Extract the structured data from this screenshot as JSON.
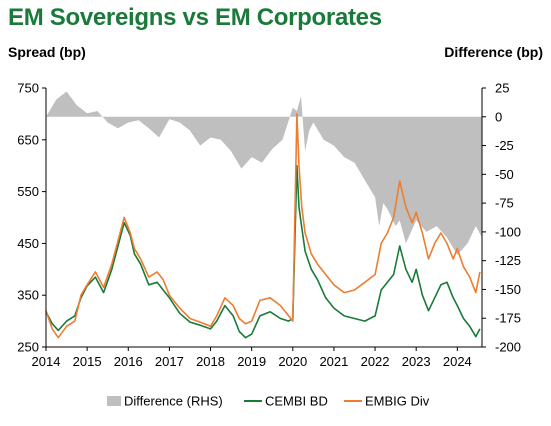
{
  "chart_data": {
    "type": "line",
    "title": "EM Sovereigns vs EM Corporates",
    "ylabel": "Spread (bp)",
    "y2label": "Difference (bp)",
    "xlim": [
      2014.0,
      2024.6
    ],
    "ylim": [
      250,
      750
    ],
    "y2lim": [
      -200,
      25
    ],
    "xticks": [
      "2014",
      "2015",
      "2016",
      "2017",
      "2018",
      "2019",
      "2020",
      "2021",
      "2022",
      "2023",
      "2024"
    ],
    "yticks": [
      250,
      350,
      450,
      550,
      650,
      750
    ],
    "y2ticks": [
      25,
      0,
      -25,
      -50,
      -75,
      -100,
      -125,
      -150,
      -175,
      -200
    ],
    "grid": false,
    "legend_position": "bottom",
    "series": [
      {
        "name": "Difference (RHS)",
        "axis": "right",
        "style": "area",
        "color": "#bfbfbf",
        "x": [
          2014.0,
          2014.25,
          2014.5,
          2014.75,
          2015.0,
          2015.25,
          2015.5,
          2015.75,
          2016.0,
          2016.25,
          2016.5,
          2016.75,
          2017.0,
          2017.25,
          2017.5,
          2017.75,
          2018.0,
          2018.25,
          2018.5,
          2018.75,
          2019.0,
          2019.25,
          2019.5,
          2019.75,
          2020.0,
          2020.1,
          2020.2,
          2020.3,
          2020.4,
          2020.5,
          2020.75,
          2021.0,
          2021.25,
          2021.5,
          2021.75,
          2022.0,
          2022.1,
          2022.2,
          2022.3,
          2022.5,
          2022.6,
          2022.75,
          2023.0,
          2023.25,
          2023.5,
          2023.75,
          2024.0,
          2024.25,
          2024.45,
          2024.6
        ],
        "values": [
          0,
          15,
          22,
          10,
          3,
          5,
          -5,
          -10,
          -5,
          -3,
          -10,
          -18,
          -2,
          -5,
          -12,
          -25,
          -18,
          -20,
          -30,
          -45,
          -35,
          -40,
          -28,
          -20,
          8,
          5,
          18,
          -30,
          -12,
          -5,
          -20,
          -25,
          -35,
          -40,
          -55,
          -70,
          -95,
          -75,
          -80,
          -95,
          -90,
          -110,
          -90,
          -100,
          -95,
          -105,
          -120,
          -110,
          -95,
          -105
        ]
      },
      {
        "name": "CEMBI BD",
        "axis": "left",
        "style": "line",
        "color": "#1a7a3a",
        "x": [
          2014.0,
          2014.15,
          2014.3,
          2014.5,
          2014.7,
          2014.85,
          2015.0,
          2015.2,
          2015.4,
          2015.6,
          2015.75,
          2015.9,
          2016.05,
          2016.15,
          2016.3,
          2016.5,
          2016.7,
          2016.85,
          2017.0,
          2017.25,
          2017.5,
          2017.75,
          2018.0,
          2018.15,
          2018.35,
          2018.55,
          2018.7,
          2018.85,
          2019.0,
          2019.2,
          2019.45,
          2019.7,
          2019.9,
          2020.0,
          2020.1,
          2020.15,
          2020.22,
          2020.3,
          2020.45,
          2020.6,
          2020.8,
          2021.0,
          2021.25,
          2021.5,
          2021.75,
          2022.0,
          2022.15,
          2022.3,
          2022.45,
          2022.6,
          2022.75,
          2022.9,
          2023.0,
          2023.15,
          2023.3,
          2023.45,
          2023.6,
          2023.75,
          2023.9,
          2024.0,
          2024.15,
          2024.3,
          2024.45,
          2024.55
        ],
        "values": [
          318,
          295,
          282,
          300,
          310,
          345,
          368,
          385,
          355,
          400,
          445,
          490,
          465,
          430,
          410,
          370,
          375,
          360,
          345,
          315,
          298,
          292,
          285,
          300,
          330,
          310,
          280,
          268,
          275,
          310,
          318,
          305,
          300,
          305,
          600,
          520,
          480,
          435,
          400,
          380,
          345,
          325,
          310,
          305,
          300,
          310,
          360,
          375,
          390,
          445,
          400,
          375,
          400,
          350,
          320,
          345,
          370,
          375,
          345,
          330,
          305,
          290,
          270,
          285
        ]
      },
      {
        "name": "EMBIG Div",
        "axis": "left",
        "style": "line",
        "color": "#ed7d31",
        "x": [
          2014.0,
          2014.15,
          2014.3,
          2014.5,
          2014.7,
          2014.85,
          2015.0,
          2015.2,
          2015.4,
          2015.6,
          2015.75,
          2015.9,
          2016.05,
          2016.15,
          2016.3,
          2016.5,
          2016.7,
          2016.85,
          2017.0,
          2017.25,
          2017.5,
          2017.75,
          2018.0,
          2018.15,
          2018.35,
          2018.55,
          2018.7,
          2018.85,
          2019.0,
          2019.2,
          2019.45,
          2019.7,
          2019.9,
          2020.0,
          2020.1,
          2020.15,
          2020.22,
          2020.3,
          2020.45,
          2020.6,
          2020.8,
          2021.0,
          2021.25,
          2021.5,
          2021.75,
          2022.0,
          2022.15,
          2022.3,
          2022.45,
          2022.6,
          2022.75,
          2022.9,
          2023.0,
          2023.15,
          2023.3,
          2023.45,
          2023.6,
          2023.75,
          2023.9,
          2024.0,
          2024.15,
          2024.3,
          2024.45,
          2024.55
        ],
        "values": [
          320,
          285,
          268,
          290,
          300,
          350,
          370,
          395,
          365,
          410,
          455,
          500,
          470,
          440,
          420,
          385,
          395,
          380,
          350,
          325,
          305,
          298,
          290,
          310,
          345,
          330,
          305,
          295,
          300,
          340,
          345,
          330,
          310,
          300,
          700,
          600,
          520,
          470,
          430,
          410,
          390,
          370,
          355,
          360,
          375,
          390,
          450,
          470,
          500,
          570,
          520,
          490,
          510,
          470,
          420,
          450,
          470,
          450,
          420,
          440,
          405,
          385,
          355,
          395
        ]
      }
    ]
  }
}
